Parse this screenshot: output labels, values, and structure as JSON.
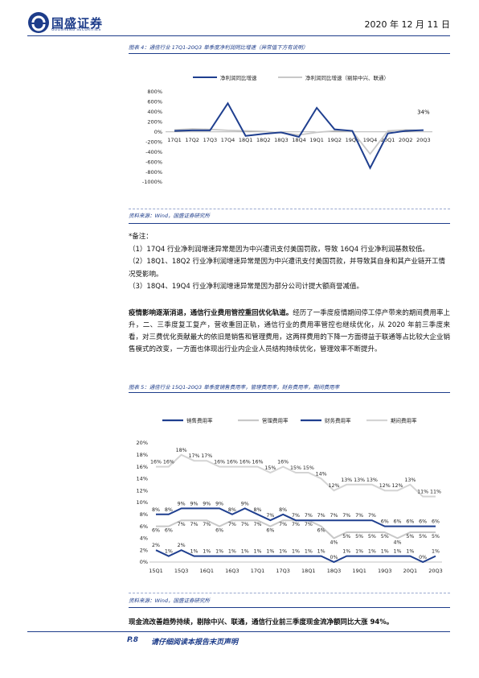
{
  "header": {
    "logo_text": "国盛证券",
    "logo_sub": "GUOSHENG SECURITIES",
    "date": "2020 年 12 月 11 日"
  },
  "figure4": {
    "title": "图表 4：通信行业 17Q1-20Q3 单季度净利润同比增速（异常值下方有说明）",
    "source": "资料来源：Wind，国盛证券研究所",
    "chart_data": {
      "type": "line",
      "categories": [
        "17Q1",
        "17Q2",
        "17Q3",
        "17Q4",
        "18Q1",
        "18Q2",
        "18Q3",
        "18Q4",
        "19Q1",
        "19Q2",
        "19Q3",
        "19Q4",
        "20Q1",
        "20Q2",
        "20Q3"
      ],
      "series": [
        {
          "name": "净利润同比增速",
          "values": [
            20,
            30,
            30,
            570,
            -80,
            -40,
            -10,
            -100,
            480,
            50,
            20,
            -720,
            -30,
            20,
            34
          ],
          "color": "#1f3f8f"
        },
        {
          "name": "净利润同比增速（剔除中兴、联通）",
          "values": [
            40,
            60,
            50,
            30,
            20,
            10,
            -20,
            -60,
            -10,
            20,
            10,
            -440,
            20,
            40,
            30
          ],
          "color": "#c8c8c8"
        }
      ],
      "annotation": "34%",
      "ylim": [
        -1000,
        800
      ],
      "yticks": [
        "800%",
        "600%",
        "400%",
        "200%",
        "0%",
        "-200%",
        "-400%",
        "-600%",
        "-800%",
        "-1000%"
      ],
      "legend": "top"
    }
  },
  "notes": {
    "heading": "*备注：",
    "items": [
      "（1）17Q4 行业净利润增速异常是因为中兴遭讯支付美国罚款，导致 16Q4 行业净利润基数较低。",
      "（2）18Q1、18Q2 行业净利润增速异常是因为中兴遭讯支付美国罚款，并导致其自身和其产业链开工情况受影响。",
      "（3）18Q4、19Q4 行业净利润增速异常是因为部分公司计提大额商誉减值。"
    ]
  },
  "paragraph1": {
    "bold": "疫情影响逐渐消退，通信行业费用管控重回优化轨道。",
    "text": "经历了一季度疫情期间停工停产带来的期间费用率上升，二、三季度复工复产，营收重回正轨，通信行业的费用率管控也继续优化，从 2020 年前三季度来看，对三费优化贡献最大的依旧是销售和管理费用，这两样费用的下降一方面得益于联通等占比较大企业销售模式的改变，一方面也体现出行业内企业人员结构持续优化，管理效率不断提升。"
  },
  "figure5": {
    "title": "图表 5：通信行业 15Q1-20Q3 单季度销售费用率，管理费用率，财务费用率，期间费用率",
    "source": "资料来源：Wind，国盛证券研究所",
    "chart_data": {
      "type": "line",
      "categories": [
        "15Q1",
        "15Q2",
        "15Q3",
        "15Q4",
        "16Q1",
        "16Q2",
        "16Q3",
        "16Q4",
        "17Q1",
        "17Q2",
        "17Q3",
        "17Q4",
        "18Q1",
        "18Q2",
        "18Q3",
        "18Q4",
        "19Q1",
        "19Q2",
        "19Q3",
        "19Q4",
        "20Q1",
        "20Q2",
        "20Q3"
      ],
      "xtick_labels": [
        "15Q1",
        "15Q3",
        "16Q1",
        "16Q3",
        "17Q1",
        "17Q3",
        "18Q1",
        "18Q3",
        "19Q1",
        "19Q3",
        "20Q1",
        "20Q3"
      ],
      "series": [
        {
          "name": "销售费用率",
          "values": [
            8,
            8,
            9,
            9,
            9,
            9,
            8,
            9,
            8,
            7,
            8,
            7,
            7,
            7,
            7,
            7,
            7,
            7,
            6,
            6,
            6,
            6,
            6
          ],
          "labels": [
            "8%",
            "8%",
            "9%",
            "9%",
            "9%",
            "9%",
            "8%",
            "9%",
            "8%",
            "7%",
            "8%",
            "7%",
            "7%",
            "7%",
            "7%",
            "7%",
            "7%",
            "7%",
            "6%",
            "6%",
            "6%",
            "6%",
            "6%"
          ],
          "color": "#1f3f8f"
        },
        {
          "name": "管理费用率",
          "values": [
            6,
            6,
            7,
            7,
            7,
            6,
            7,
            7,
            7,
            6,
            7,
            7,
            7,
            6,
            4,
            5,
            5,
            5,
            5,
            4,
            5,
            5,
            5
          ],
          "labels": [
            "6%",
            "6%",
            "7%",
            "7%",
            "7%",
            "6%",
            "7%",
            "7%",
            "7%",
            "6%",
            "7%",
            "7%",
            "7%",
            "6%",
            "4%",
            "5%",
            "5%",
            "5%",
            "5%",
            "4%",
            "5%",
            "5%",
            "5%"
          ],
          "color": "#c8c8c8"
        },
        {
          "name": "财务费用率",
          "values": [
            2,
            1,
            2,
            1,
            1,
            1,
            1,
            1,
            1,
            1,
            1,
            1,
            1,
            1,
            0,
            1,
            1,
            1,
            1,
            1,
            1,
            0,
            1
          ],
          "labels": [
            "2%",
            "1%",
            "2%",
            "1%",
            "1%",
            "1%",
            "1%",
            "1%",
            "1%",
            "1%",
            "1%",
            "1%",
            "1%",
            "1%",
            "0%",
            "1%",
            "1%",
            "1%",
            "1%",
            "1%",
            "1%",
            "0%",
            "1%"
          ],
          "color": "#1f3f8f"
        },
        {
          "name": "期间费用率",
          "values": [
            16,
            16,
            18,
            17,
            17,
            16,
            16,
            16,
            16,
            15,
            16,
            15,
            15,
            14,
            12,
            13,
            13,
            13,
            12,
            12,
            13,
            11,
            11
          ],
          "labels": [
            "16%",
            "16%",
            "18%",
            "17%",
            "17%",
            "16%",
            "16%",
            "16%",
            "16%",
            "15%",
            "16%",
            "15%",
            "15%",
            "14%",
            "12%",
            "13%",
            "13%",
            "13%",
            "12%",
            "12%",
            "13%",
            "11%",
            "11%"
          ],
          "color": "#d4d4d4"
        }
      ],
      "ylim": [
        0,
        20
      ],
      "yticks": [
        "20%",
        "18%",
        "16%",
        "14%",
        "12%",
        "10%",
        "8%",
        "6%",
        "4%",
        "2%",
        "0%"
      ],
      "legend": "top"
    }
  },
  "paragraph2": {
    "text": "现金流改善趋势持续，剔除中兴、联通，通信行业前三季度现金流净额同比大涨 94%。"
  },
  "footer": {
    "page": "P.8",
    "disclaimer": "请仔细阅读本报告末页声明"
  }
}
